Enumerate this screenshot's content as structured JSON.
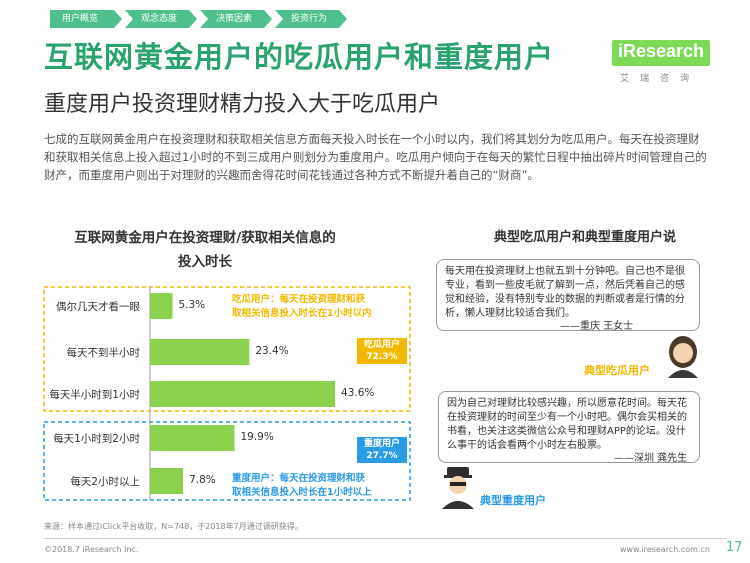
{
  "nav": [
    "用户概览",
    "观念态度",
    "决策因素",
    "投资行为"
  ],
  "title": "互联网黄金用户的吃瓜用户和重度用户",
  "subtitle": "重度用户投资理财精力投入大于吃瓜用户",
  "logo": {
    "text": "iResearch",
    "cn": "艾瑞咨询"
  },
  "intro": "七成的互联网黄金用户在投资理财和获取相关信息方面每天投入时长在一个小时以内，我们将其划分为吃瓜用户。每天在投资理财和获取相关信息上投入超过1小时的不到三成用户则划分为重度用户。吃瓜用户倾向于在每天的繁忙日程中抽出碎片时间管理自己的财产，而重度用户则出于对理财的兴趣而舍得花时间花钱通过各种方式不断提升着自己的“财商”。",
  "chart_data": {
    "type": "bar",
    "orientation": "horizontal",
    "title": "互联网黄金用户在投资理财/获取相关信息的投入时长",
    "categories": [
      "偶尔几天才看一眼",
      "每天不到半小时",
      "每天半小时到1小时",
      "每天1小时到2小时",
      "每天2小时以上"
    ],
    "values": [
      5.3,
      23.4,
      43.6,
      19.9,
      7.8
    ],
    "value_labels": [
      "5.3%",
      "23.4%",
      "43.6%",
      "19.9%",
      "7.8%"
    ],
    "groups": [
      {
        "name": "吃瓜用户",
        "total": "72.3%",
        "members": [
          0,
          1,
          2
        ],
        "color": "#f5b800",
        "note": [
          "吃瓜用户：每天在投资理财和获",
          "取相关信息投入时长在1小时以内"
        ]
      },
      {
        "name": "重度用户",
        "total": "27.7%",
        "members": [
          3,
          4
        ],
        "color": "#2b9be8",
        "note": [
          "重度用户：每天在投资理财和获",
          "取相关信息投入时长在1小时以上"
        ]
      }
    ],
    "bar_color": "#8bd14e",
    "xlim": [
      0,
      50
    ]
  },
  "right": {
    "title": "典型吃瓜用户和典型重度用户说",
    "quote1": "每天用在投资理财上也就五到十分钟吧。自己也不是很专业，看到一些皮毛就了解到一点，然后凭着自己的感觉和经验，没有特别专业的数据的判断或者是行情的分析，懒人理财比较适合我们。",
    "sig1": "——重庆 王女士",
    "persona1": "典型吃瓜用户",
    "quote2": "因为自己对理财比较感兴趣，所以愿意花时间。每天花在投资理财的时间至少有一个小时吧。偶尔会买相关的书看，也关注这类微信公众号和理财APP的论坛。没什么事干的话会看两个小时左右股票。",
    "sig2": "——深圳 龚先生",
    "persona2": "典型重度用户"
  },
  "source": "来源：样本通过iClick平台收取，N=748，于2018年7月通过调研获得。",
  "footer_left": "©2018.7 iResearch Inc.",
  "footer_right": "www.iresearch.com.cn",
  "page_number": "17"
}
